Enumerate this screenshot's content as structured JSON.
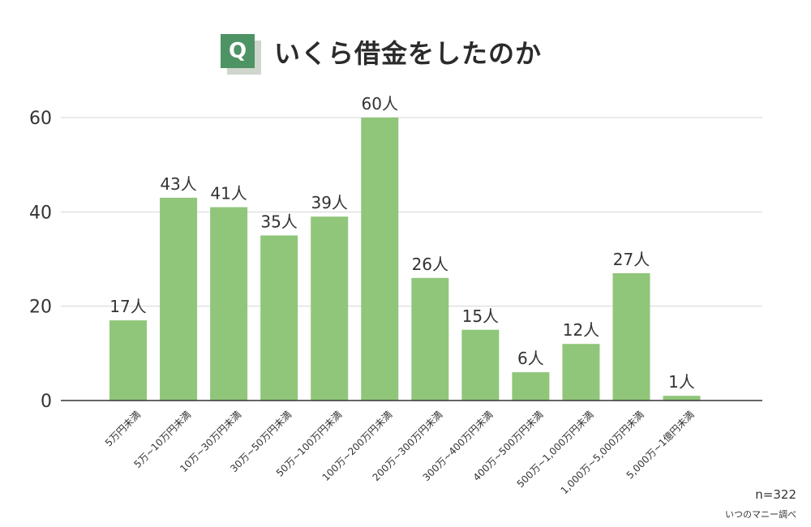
{
  "header": {
    "badge": "Q",
    "title": "いくら借金をしたのか"
  },
  "chart_data": {
    "type": "bar",
    "title": "いくら借金をしたのか",
    "categories": [
      "5万円未満",
      "5万~10万円未満",
      "10万~30万円未満",
      "30万~50万円未満",
      "50万~100万円未満",
      "100万~200万円未満",
      "200万~300万円未満",
      "300万~400万円未満",
      "400万~500万円未満",
      "500万~1,000万円未満",
      "1,000万~5,000万円未満",
      "5,000万~1億円未満"
    ],
    "values": [
      17,
      43,
      41,
      35,
      39,
      60,
      26,
      15,
      6,
      12,
      27,
      1
    ],
    "value_labels": [
      "17人",
      "43人",
      "41人",
      "35人",
      "39人",
      "60人",
      "26人",
      "15人",
      "6人",
      "12人",
      "27人",
      "1人"
    ],
    "y_ticks": [
      "0",
      "20",
      "40",
      "60"
    ],
    "ylim": [
      0,
      60
    ],
    "grid": true,
    "bar_color": "#90c67a"
  },
  "notes": {
    "n": "n=322",
    "source": "いつのマニー調べ"
  }
}
